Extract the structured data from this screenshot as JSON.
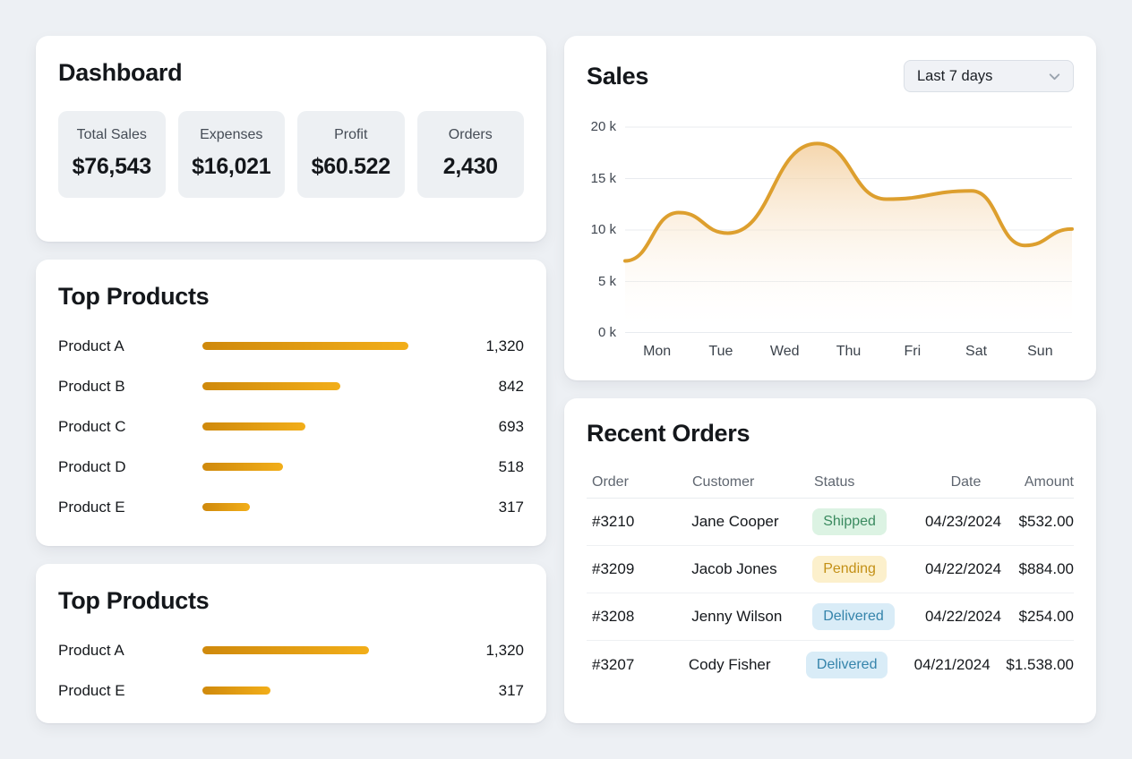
{
  "theme": {
    "page_bg": "#edf0f4",
    "card_bg": "#ffffff",
    "accent": "#dd9f2e",
    "bar_start": "#cf890c",
    "bar_end": "#f2ae19",
    "area_fill_top": "#f3cf9f",
    "badge_shipped_bg": "#dcf3e3",
    "badge_shipped_text": "#3a8a5f",
    "badge_pending_bg": "#fcf0cc",
    "badge_pending_text": "#c39016",
    "badge_delivered_bg": "#d9ecf7",
    "badge_delivered_text": "#3584ab"
  },
  "dashboard": {
    "title": "Dashboard",
    "stats": [
      {
        "label": "Total Sales",
        "value": "$76,543"
      },
      {
        "label": "Expenses",
        "value": "$16,021"
      },
      {
        "label": "Profit",
        "value": "$60.522"
      },
      {
        "label": "Orders",
        "value": "2,430"
      }
    ]
  },
  "top_products": {
    "title": "Top Products",
    "items": [
      {
        "name": "Product A",
        "value": "1,320",
        "bar_pct": 100
      },
      {
        "name": "Product B",
        "value": "842",
        "bar_pct": 67
      },
      {
        "name": "Product C",
        "value": "693",
        "bar_pct": 50
      },
      {
        "name": "Product D",
        "value": "518",
        "bar_pct": 39
      },
      {
        "name": "Product E",
        "value": "317",
        "bar_pct": 23
      }
    ]
  },
  "top_products_2": {
    "title": "Top Products",
    "items": [
      {
        "name": "Product A",
        "value": "1,320",
        "bar_pct": 81
      },
      {
        "name": "Product E",
        "value": "317",
        "bar_pct": 33
      }
    ]
  },
  "sales": {
    "title": "Sales",
    "range_selector": "Last 7 days"
  },
  "chart_data": {
    "type": "area",
    "title": "Sales",
    "x_labels": [
      "Mon",
      "Tue",
      "Wed",
      "Thu",
      "Fri",
      "Sat",
      "Sun"
    ],
    "y_tick_labels": [
      "20 k",
      "15 k",
      "10 k",
      "5 k",
      "0 k"
    ],
    "ylim": [
      0,
      20
    ],
    "unit": "k",
    "grid": true,
    "legend": false,
    "series": [
      {
        "name": "Sales",
        "points": [
          [
            0.0,
            7.0
          ],
          [
            0.12,
            11.7
          ],
          [
            0.23,
            9.7
          ],
          [
            0.43,
            18.4
          ],
          [
            0.585,
            13.0
          ],
          [
            0.775,
            13.8
          ],
          [
            0.895,
            8.5
          ],
          [
            1.0,
            10.1
          ]
        ]
      }
    ]
  },
  "recent_orders": {
    "title": "Recent Orders",
    "columns": [
      "Order",
      "Customer",
      "Status",
      "Date",
      "Amount"
    ],
    "rows": [
      {
        "order": "#3210",
        "customer": "Jane Cooper",
        "status": "Shipped",
        "status_type": "shipped",
        "date": "04/23/2024",
        "amount": "$532.00"
      },
      {
        "order": "#3209",
        "customer": "Jacob Jones",
        "status": "Pending",
        "status_type": "pending",
        "date": "04/22/2024",
        "amount": "$884.00"
      },
      {
        "order": "#3208",
        "customer": "Jenny Wilson",
        "status": "Delivered",
        "status_type": "delivered",
        "date": "04/22/2024",
        "amount": "$254.00"
      },
      {
        "order": "#3207",
        "customer": "Cody Fisher",
        "status": "Delivered",
        "status_type": "delivered",
        "date": "04/21/2024",
        "amount": "$1.538.00"
      }
    ]
  }
}
